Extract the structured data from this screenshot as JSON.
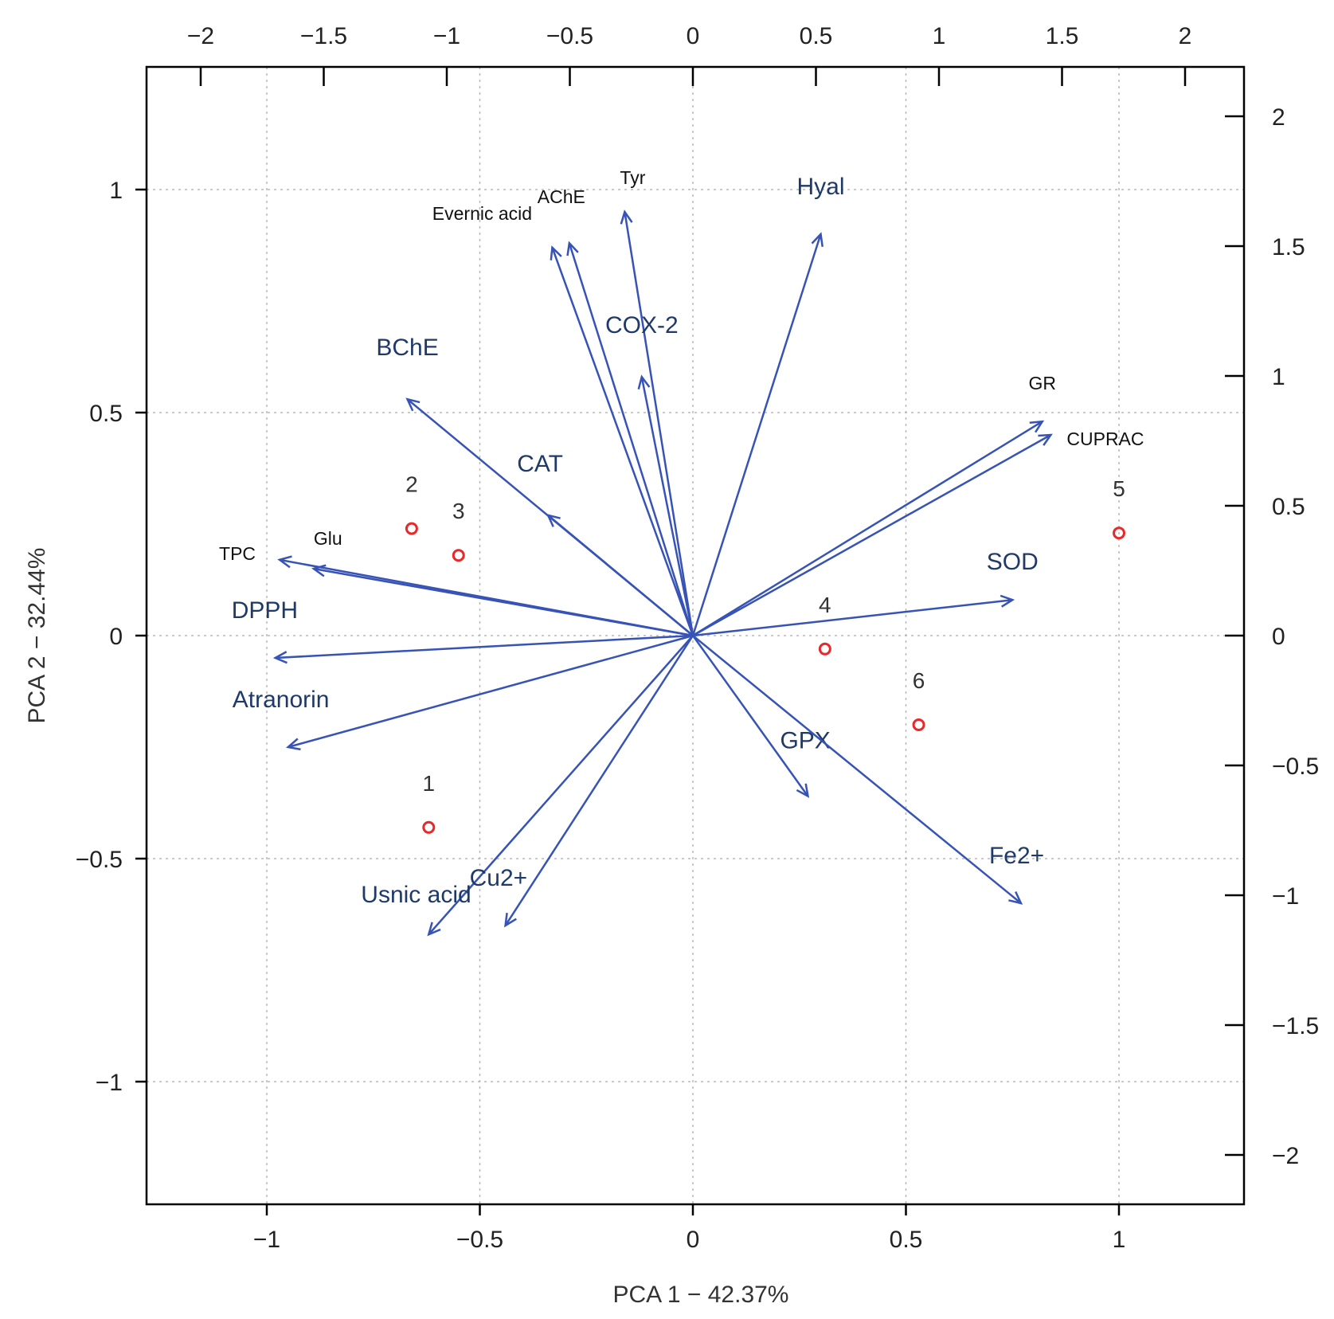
{
  "chart_data": {
    "type": "scatter",
    "subtype": "pca-biplot",
    "xlabel": "PCA 1 − 42.37%",
    "ylabel": "PCA 2 − 32.44%",
    "xlim": [
      -1.3,
      1.3
    ],
    "ylim": [
      -1.28,
      1.3
    ],
    "x_ticks": [
      -1,
      -0.5,
      0,
      0.5,
      1
    ],
    "x_tick_labels": [
      "−1",
      "−0.5",
      "0",
      "0.5",
      "1"
    ],
    "y_ticks": [
      -1,
      -0.5,
      0,
      0.5,
      1
    ],
    "y_tick_labels": [
      "−1",
      "−0.5",
      "0",
      "0.5",
      "1"
    ],
    "top_axis": {
      "ticks": [
        -2,
        -1.5,
        -1,
        -0.5,
        0,
        0.5,
        1,
        1.5,
        2
      ],
      "tick_labels": [
        "−2",
        "−1.5",
        "−1",
        "−0.5",
        "0",
        "0.5",
        "1",
        "1.5",
        "2"
      ]
    },
    "right_axis": {
      "ticks": [
        -2,
        -1.5,
        -1,
        -0.5,
        0,
        0.5,
        1,
        1.5,
        2
      ],
      "tick_labels": [
        "−2",
        "−1.5",
        "−1",
        "−0.5",
        "0",
        "0.5",
        "1",
        "1.5",
        "2"
      ]
    },
    "grid": true,
    "observations": [
      {
        "label": "1",
        "x": -0.62,
        "y": -0.43
      },
      {
        "label": "2",
        "x": -0.66,
        "y": 0.24
      },
      {
        "label": "3",
        "x": -0.55,
        "y": 0.18
      },
      {
        "label": "4",
        "x": 0.31,
        "y": -0.03
      },
      {
        "label": "5",
        "x": 1.0,
        "y": 0.23
      },
      {
        "label": "6",
        "x": 0.53,
        "y": -0.2
      }
    ],
    "variables": [
      {
        "name": "Evernic acid",
        "x": -0.33,
        "y": 0.87
      },
      {
        "name": "AChE",
        "x": -0.29,
        "y": 0.88
      },
      {
        "name": "Tyr",
        "x": -0.16,
        "y": 0.95
      },
      {
        "name": "Hyal",
        "x": 0.3,
        "y": 0.9
      },
      {
        "name": "COX-2",
        "x": -0.12,
        "y": 0.58
      },
      {
        "name": "BChE",
        "x": -0.67,
        "y": 0.53
      },
      {
        "name": "CAT",
        "x": -0.34,
        "y": 0.27
      },
      {
        "name": "GR",
        "x": 0.82,
        "y": 0.48
      },
      {
        "name": "CUPRAC",
        "x": 0.84,
        "y": 0.45
      },
      {
        "name": "TPC",
        "x": -0.97,
        "y": 0.17
      },
      {
        "name": "Glu",
        "x": -0.89,
        "y": 0.15
      },
      {
        "name": "DPPH",
        "x": -0.98,
        "y": -0.05
      },
      {
        "name": "SOD",
        "x": 0.75,
        "y": 0.08
      },
      {
        "name": "Atranorin",
        "x": -0.95,
        "y": -0.25
      },
      {
        "name": "GPX",
        "x": 0.27,
        "y": -0.36
      },
      {
        "name": "Fe2+",
        "x": 0.77,
        "y": -0.6
      },
      {
        "name": "Usnic acid",
        "x": -0.62,
        "y": -0.67
      },
      {
        "name": "Cu2+",
        "x": -0.44,
        "y": -0.65
      }
    ],
    "colors": {
      "arrow": "#3653b5",
      "point": "#e8292b",
      "axis": "#000000"
    }
  }
}
